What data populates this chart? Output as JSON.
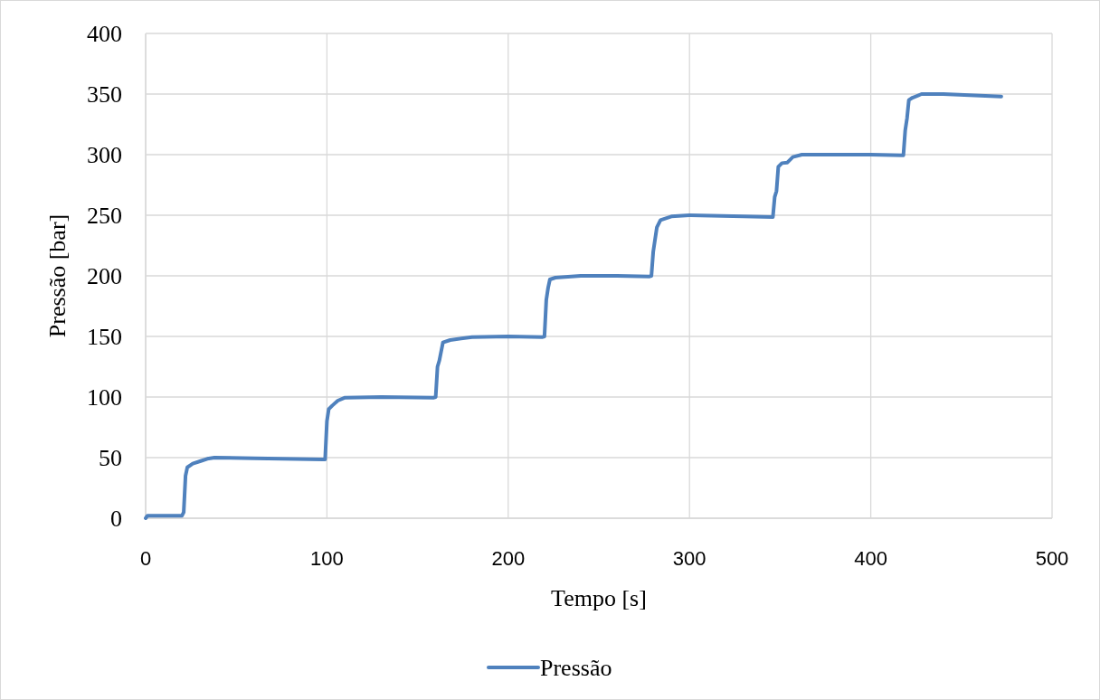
{
  "chart_data": {
    "type": "line",
    "xlabel": "Tempo [s]",
    "ylabel": "Pressão [bar]",
    "xlim": [
      0,
      500
    ],
    "xticks": [
      0,
      100,
      200,
      300,
      400,
      500
    ],
    "ylim": [
      0,
      400
    ],
    "yticks": [
      0,
      50,
      100,
      150,
      200,
      250,
      300,
      350,
      400
    ],
    "grid": true,
    "legend": "bottom",
    "line_style": "solid",
    "series": [
      {
        "name": "Pressão",
        "color": "#4f81bd",
        "x": [
          0,
          1,
          20,
          21,
          22,
          23,
          26,
          30,
          34,
          38,
          60,
          98,
          99,
          100,
          101,
          103,
          106,
          110,
          130,
          159,
          160,
          161,
          162,
          164,
          168,
          180,
          200,
          219,
          220,
          221,
          222,
          223,
          226,
          240,
          260,
          278,
          279,
          280,
          282,
          284,
          290,
          300,
          330,
          346,
          347,
          348,
          349,
          351,
          354,
          357,
          362,
          400,
          418,
          419,
          420,
          421,
          423,
          428,
          440,
          472
        ],
        "values": [
          0,
          2,
          2,
          5,
          35,
          42,
          45,
          47,
          49,
          50,
          49.5,
          48.5,
          48.5,
          80,
          90,
          93,
          97,
          99.5,
          100,
          99.5,
          100,
          125,
          130,
          145,
          147,
          149.5,
          150,
          149.5,
          150,
          180,
          190,
          197,
          198.5,
          200,
          200,
          199.5,
          200,
          220,
          240,
          246,
          249,
          250,
          249,
          248.5,
          265,
          270,
          290,
          293,
          293.5,
          298,
          300,
          300,
          299.5,
          320,
          330,
          345,
          347,
          350,
          350,
          348
        ]
      }
    ]
  }
}
